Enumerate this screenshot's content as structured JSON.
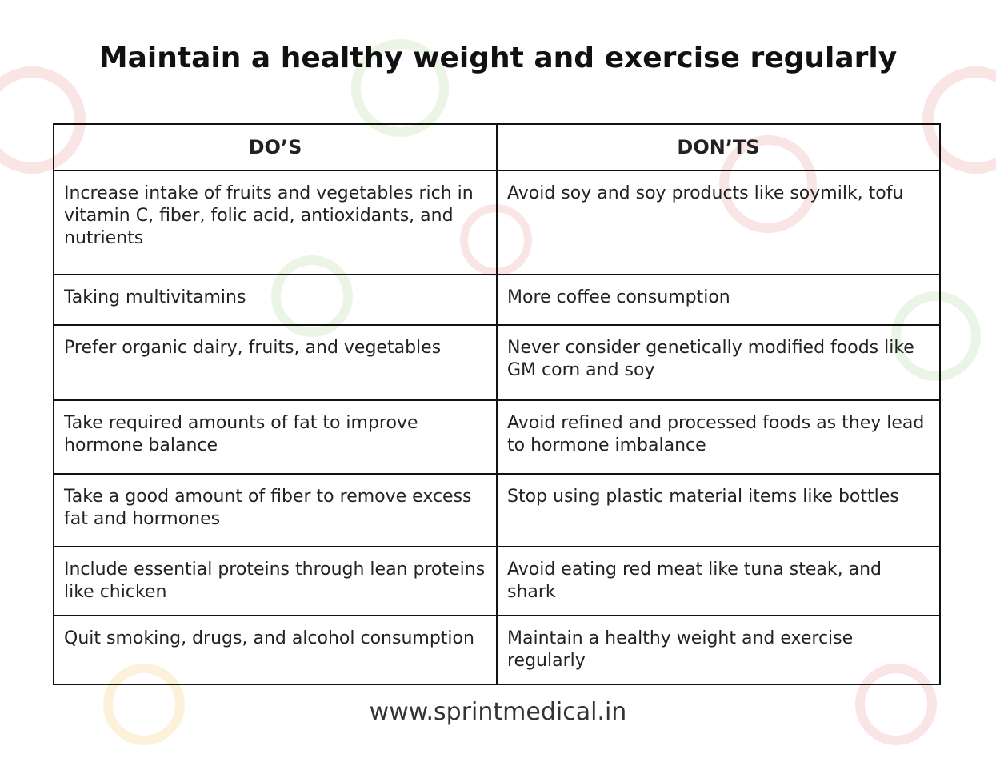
{
  "header": {
    "title": "Maintain a healthy weight and exercise regularly"
  },
  "table": {
    "columns": [
      "DO’S",
      "DON’TS"
    ],
    "rows": [
      [
        "Increase intake of fruits and vegetables rich in vitamin C, fiber, folic acid, antioxidants, and nutrients",
        "Avoid soy and soy products like soymilk, tofu"
      ],
      [
        "Taking multivitamins",
        "More coffee consumption"
      ],
      [
        "Prefer organic dairy, fruits, and vegetables",
        "Never consider genetically modified foods like GM corn and soy"
      ],
      [
        "Take required amounts of fat to improve hormone balance",
        "Avoid refined and processed foods as they lead to hormone imbalance"
      ],
      [
        "Take a good amount of fiber to remove excess fat and hormones",
        "Stop using plastic material items like bottles"
      ],
      [
        "Include essential proteins through lean proteins like chicken",
        "Avoid eating red meat like tuna steak, and shark"
      ],
      [
        "Quit smoking, drugs, and alcohol consumption",
        "Maintain a healthy weight and exercise regularly"
      ]
    ]
  },
  "footer": {
    "url": "www.sprintmedical.in"
  }
}
